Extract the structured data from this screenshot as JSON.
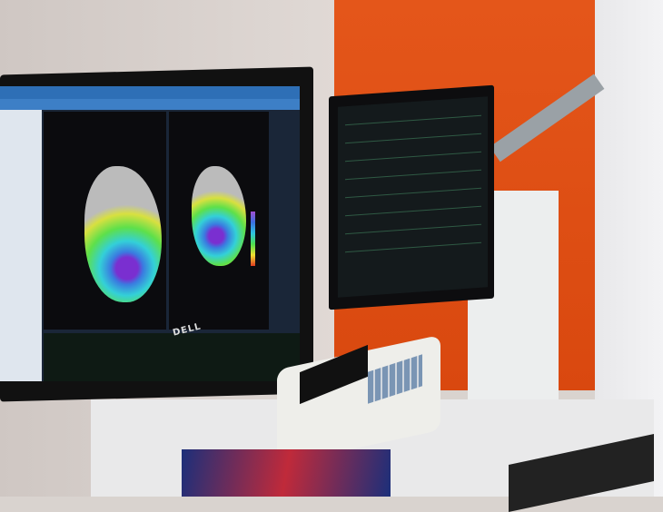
{
  "scene": {
    "description_free": true,
    "logo_text": "DELL",
    "colors": {
      "wall_orange": "#d9480f",
      "screen_tabbar": "#2e6fb6",
      "map_purple": "#a14ed0",
      "map_green": "#4ee04e"
    }
  }
}
